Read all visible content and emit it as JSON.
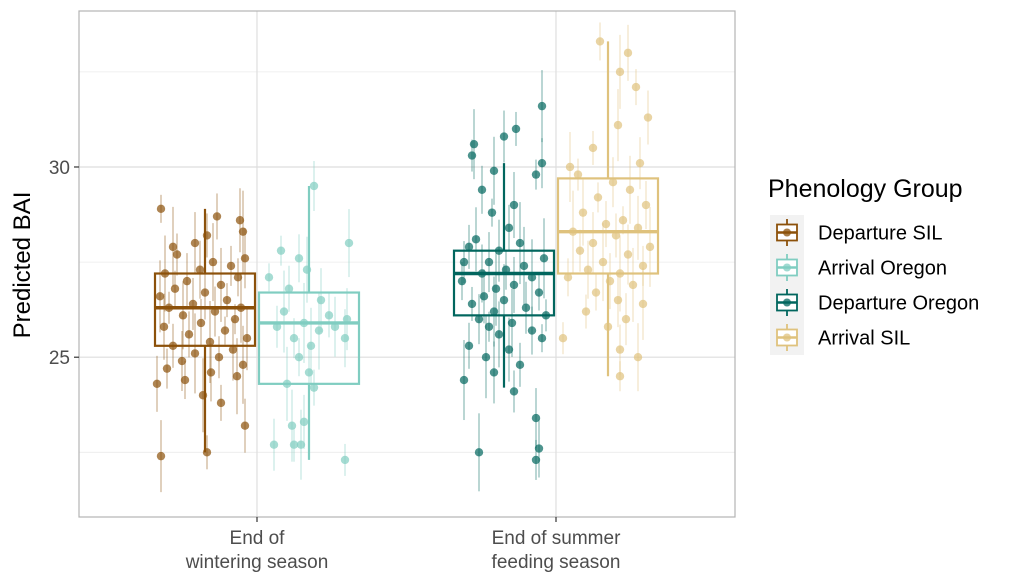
{
  "chart_data": {
    "type": "box",
    "ylabel": "Predicted BAI",
    "xlabel": "",
    "ylim": [
      20.8,
      34.1
    ],
    "yticks": [
      25,
      30
    ],
    "grid": true,
    "legend_position": "right",
    "categories": [
      [
        "End of",
        "wintering season"
      ],
      [
        "End of summer",
        "feeding season"
      ]
    ],
    "legend": {
      "title": "Phenology Group",
      "entries": [
        "Departure SIL",
        "Arrival Oregon",
        "Departure Oregon",
        "Arrival SIL"
      ]
    },
    "series": [
      {
        "name": "Departure SIL",
        "category": 0,
        "color": "#8c510a",
        "box": {
          "whisker_low": 22.5,
          "q1": 25.3,
          "median": 26.3,
          "q3": 27.2,
          "whisker_high": 28.9
        },
        "points": [
          [
            0.06,
            28.9
          ],
          [
            0.62,
            28.7
          ],
          [
            0.85,
            28.6
          ],
          [
            0.88,
            28.3
          ],
          [
            0.52,
            28.2
          ],
          [
            0.4,
            28.0
          ],
          [
            0.18,
            27.9
          ],
          [
            0.22,
            27.7
          ],
          [
            0.9,
            27.6
          ],
          [
            0.58,
            27.5
          ],
          [
            0.76,
            27.4
          ],
          [
            0.45,
            27.3
          ],
          [
            0.1,
            27.2
          ],
          [
            0.83,
            27.1
          ],
          [
            0.32,
            27.0
          ],
          [
            0.66,
            26.9
          ],
          [
            0.2,
            26.8
          ],
          [
            0.5,
            26.7
          ],
          [
            0.05,
            26.6
          ],
          [
            0.72,
            26.5
          ],
          [
            0.38,
            26.4
          ],
          [
            0.86,
            26.3
          ],
          [
            0.14,
            26.3
          ],
          [
            0.6,
            26.2
          ],
          [
            0.28,
            26.1
          ],
          [
            0.8,
            26.0
          ],
          [
            0.46,
            25.9
          ],
          [
            0.09,
            25.8
          ],
          [
            0.7,
            25.7
          ],
          [
            0.34,
            25.6
          ],
          [
            0.92,
            25.5
          ],
          [
            0.55,
            25.4
          ],
          [
            0.18,
            25.3
          ],
          [
            0.78,
            25.2
          ],
          [
            0.4,
            25.1
          ],
          [
            0.64,
            25.0
          ],
          [
            0.27,
            24.9
          ],
          [
            0.88,
            24.8
          ],
          [
            0.12,
            24.7
          ],
          [
            0.56,
            24.6
          ],
          [
            0.82,
            24.5
          ],
          [
            0.3,
            24.4
          ],
          [
            0.02,
            24.3
          ],
          [
            0.48,
            24.0
          ],
          [
            0.66,
            23.8
          ],
          [
            0.9,
            23.2
          ],
          [
            0.06,
            22.4
          ],
          [
            0.52,
            22.5
          ]
        ]
      },
      {
        "name": "Arrival Oregon",
        "category": 0,
        "color": "#80cdc1",
        "box": {
          "whisker_low": 22.3,
          "q1": 24.3,
          "median": 25.9,
          "q3": 26.7,
          "whisker_high": 29.5
        },
        "points": [
          [
            0.55,
            29.5
          ],
          [
            0.9,
            28.0
          ],
          [
            0.22,
            27.8
          ],
          [
            0.4,
            27.6
          ],
          [
            0.48,
            27.3
          ],
          [
            0.1,
            27.1
          ],
          [
            0.3,
            26.8
          ],
          [
            0.62,
            26.5
          ],
          [
            0.25,
            26.2
          ],
          [
            0.7,
            26.1
          ],
          [
            0.88,
            26.0
          ],
          [
            0.45,
            25.9
          ],
          [
            0.18,
            25.8
          ],
          [
            0.76,
            25.8
          ],
          [
            0.6,
            25.7
          ],
          [
            0.35,
            25.5
          ],
          [
            0.86,
            25.5
          ],
          [
            0.52,
            25.3
          ],
          [
            0.4,
            25.0
          ],
          [
            0.5,
            24.6
          ],
          [
            0.28,
            24.3
          ],
          [
            0.55,
            24.2
          ],
          [
            0.45,
            23.3
          ],
          [
            0.33,
            23.2
          ],
          [
            0.35,
            22.7
          ],
          [
            0.15,
            22.7
          ],
          [
            0.42,
            22.7
          ],
          [
            0.86,
            22.3
          ]
        ]
      },
      {
        "name": "Departure Oregon",
        "category": 1,
        "color": "#01665e",
        "box": {
          "whisker_low": 24.2,
          "q1": 26.1,
          "median": 27.2,
          "q3": 27.8,
          "whisker_high": 30.1
        },
        "points": [
          [
            0.88,
            31.6
          ],
          [
            0.62,
            31.0
          ],
          [
            0.5,
            30.8
          ],
          [
            0.2,
            30.6
          ],
          [
            0.18,
            30.3
          ],
          [
            0.88,
            30.1
          ],
          [
            0.4,
            29.9
          ],
          [
            0.82,
            29.8
          ],
          [
            0.28,
            29.4
          ],
          [
            0.6,
            29.0
          ],
          [
            0.38,
            28.8
          ],
          [
            0.55,
            28.4
          ],
          [
            0.22,
            28.1
          ],
          [
            0.66,
            28.0
          ],
          [
            0.15,
            27.9
          ],
          [
            0.45,
            27.8
          ],
          [
            0.9,
            27.6
          ],
          [
            0.1,
            27.5
          ],
          [
            0.35,
            27.5
          ],
          [
            0.7,
            27.4
          ],
          [
            0.52,
            27.3
          ],
          [
            0.28,
            27.2
          ],
          [
            0.78,
            27.1
          ],
          [
            0.08,
            27.0
          ],
          [
            0.6,
            26.9
          ],
          [
            0.42,
            26.8
          ],
          [
            0.85,
            26.7
          ],
          [
            0.3,
            26.6
          ],
          [
            0.5,
            26.5
          ],
          [
            0.18,
            26.4
          ],
          [
            0.72,
            26.3
          ],
          [
            0.4,
            26.2
          ],
          [
            0.92,
            26.1
          ],
          [
            0.25,
            26.0
          ],
          [
            0.58,
            25.9
          ],
          [
            0.35,
            25.8
          ],
          [
            0.78,
            25.7
          ],
          [
            0.45,
            25.6
          ],
          [
            0.88,
            25.5
          ],
          [
            0.15,
            25.3
          ],
          [
            0.55,
            25.2
          ],
          [
            0.32,
            25.0
          ],
          [
            0.66,
            24.8
          ],
          [
            0.4,
            24.6
          ],
          [
            0.1,
            24.4
          ],
          [
            0.6,
            24.1
          ],
          [
            0.82,
            23.4
          ],
          [
            0.25,
            22.5
          ],
          [
            0.82,
            22.3
          ],
          [
            0.85,
            22.6
          ]
        ]
      },
      {
        "name": "Arrival SIL",
        "category": 1,
        "color": "#dfc27d",
        "box": {
          "whisker_low": 24.5,
          "q1": 27.2,
          "median": 28.3,
          "q3": 29.7,
          "whisker_high": 33.3
        },
        "points": [
          [
            0.42,
            33.3
          ],
          [
            0.7,
            33.0
          ],
          [
            0.62,
            32.5
          ],
          [
            0.78,
            32.1
          ],
          [
            0.9,
            31.3
          ],
          [
            0.6,
            31.1
          ],
          [
            0.35,
            30.5
          ],
          [
            0.82,
            30.1
          ],
          [
            0.12,
            30.0
          ],
          [
            0.2,
            29.8
          ],
          [
            0.55,
            29.6
          ],
          [
            0.72,
            29.4
          ],
          [
            0.4,
            29.2
          ],
          [
            0.88,
            29.0
          ],
          [
            0.25,
            28.8
          ],
          [
            0.65,
            28.6
          ],
          [
            0.48,
            28.5
          ],
          [
            0.8,
            28.4
          ],
          [
            0.15,
            28.3
          ],
          [
            0.58,
            28.2
          ],
          [
            0.35,
            28.0
          ],
          [
            0.92,
            27.9
          ],
          [
            0.22,
            27.8
          ],
          [
            0.7,
            27.7
          ],
          [
            0.45,
            27.5
          ],
          [
            0.85,
            27.4
          ],
          [
            0.3,
            27.3
          ],
          [
            0.62,
            27.2
          ],
          [
            0.1,
            27.1
          ],
          [
            0.52,
            27.0
          ],
          [
            0.75,
            26.9
          ],
          [
            0.38,
            26.7
          ],
          [
            0.6,
            26.5
          ],
          [
            0.85,
            26.4
          ],
          [
            0.28,
            26.2
          ],
          [
            0.68,
            26.0
          ],
          [
            0.5,
            25.8
          ],
          [
            0.05,
            25.5
          ],
          [
            0.62,
            25.2
          ],
          [
            0.8,
            25.0
          ],
          [
            0.62,
            24.5
          ]
        ]
      }
    ]
  }
}
